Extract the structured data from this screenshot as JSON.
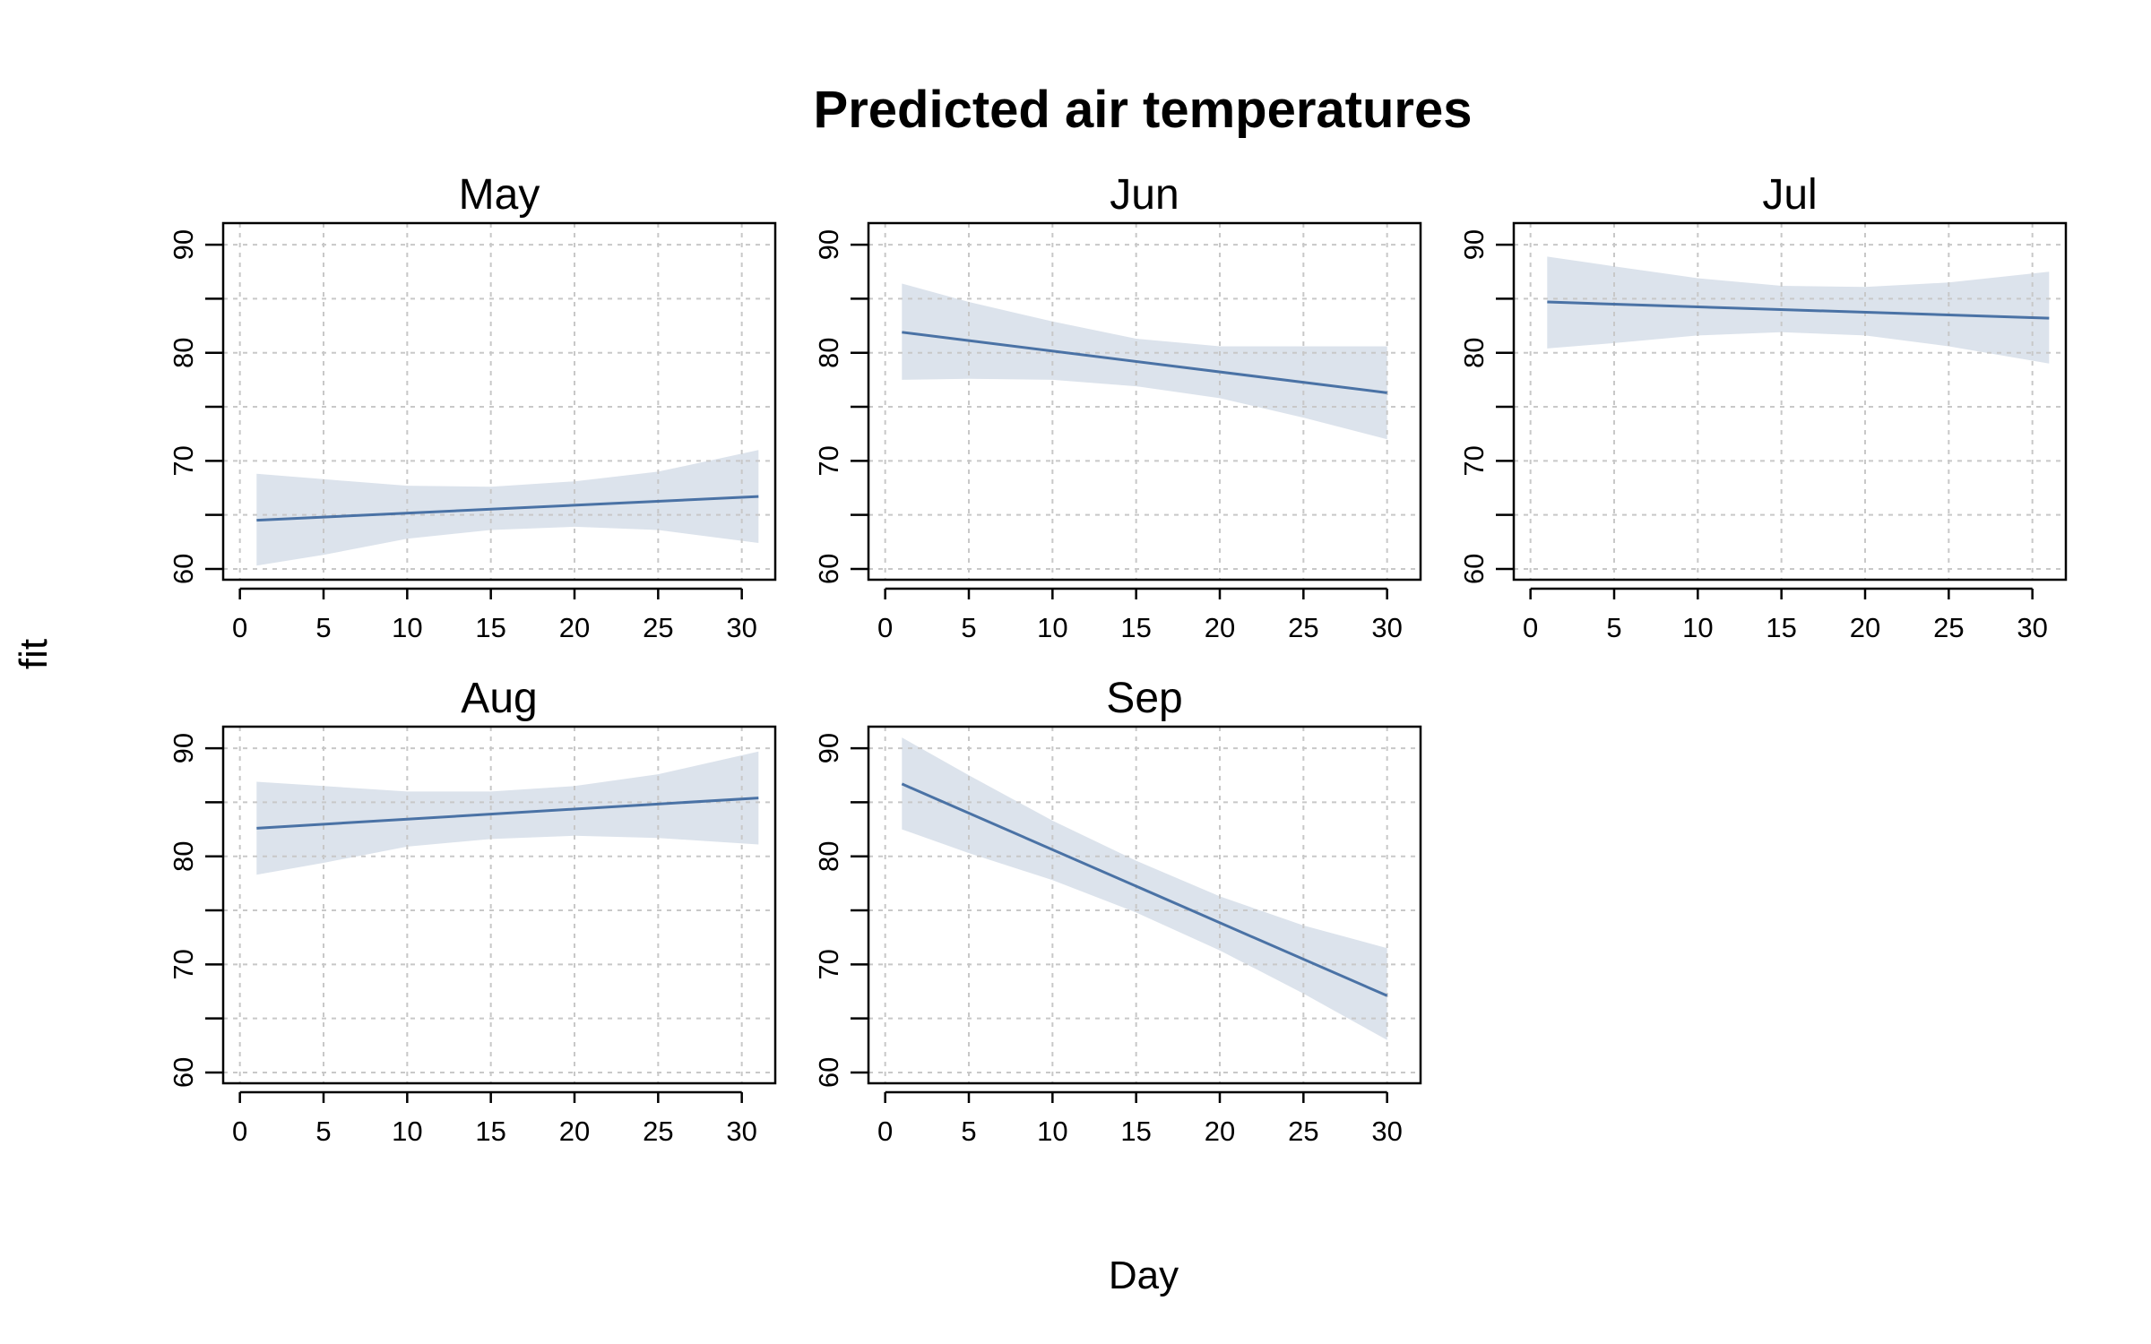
{
  "chart_data": {
    "type": "line",
    "title": "Predicted air temperatures",
    "xlabel": "Day",
    "ylabel": "fit",
    "layout": "3 columns x 2 rows",
    "xlim": [
      -1,
      32
    ],
    "ylim": [
      59,
      92
    ],
    "x_ticks": [
      0,
      5,
      10,
      15,
      20,
      25,
      30
    ],
    "y_ticks": [
      60,
      70,
      80,
      90
    ],
    "grid": true,
    "colors": {
      "line": "#4a72a5",
      "band": "#dce3ec",
      "grid": "#c8c8c8"
    },
    "panels": [
      {
        "name": "May",
        "x": [
          1,
          31
        ],
        "fit": [
          64.5,
          66.7
        ],
        "band_x": [
          1,
          5,
          10,
          15,
          20,
          25,
          31
        ],
        "band_lower": [
          60.3,
          61.3,
          62.8,
          63.6,
          63.9,
          63.6,
          62.4
        ],
        "band_upper": [
          68.8,
          68.3,
          67.7,
          67.6,
          68.1,
          69.0,
          71.0
        ]
      },
      {
        "name": "Jun",
        "x": [
          1,
          30
        ],
        "fit": [
          81.9,
          76.3
        ],
        "band_x": [
          1,
          5,
          10,
          15,
          20,
          25,
          30
        ],
        "band_lower": [
          77.5,
          77.6,
          77.5,
          76.9,
          75.8,
          74.0,
          72.0
        ],
        "band_upper": [
          86.4,
          84.7,
          82.9,
          81.3,
          80.6,
          80.6,
          80.6
        ]
      },
      {
        "name": "Jul",
        "x": [
          1,
          31
        ],
        "fit": [
          84.7,
          83.2
        ],
        "band_x": [
          1,
          5,
          10,
          15,
          20,
          25,
          31
        ],
        "band_lower": [
          80.4,
          80.9,
          81.6,
          81.9,
          81.6,
          80.6,
          79.0
        ],
        "band_upper": [
          88.9,
          88.0,
          86.9,
          86.2,
          86.1,
          86.5,
          87.5
        ]
      },
      {
        "name": "Aug",
        "x": [
          1,
          31
        ],
        "fit": [
          82.6,
          85.4
        ],
        "band_x": [
          1,
          5,
          10,
          15,
          20,
          25,
          31
        ],
        "band_lower": [
          78.3,
          79.4,
          80.9,
          81.6,
          81.9,
          81.7,
          81.1
        ],
        "band_upper": [
          86.9,
          86.5,
          86.0,
          86.0,
          86.5,
          87.6,
          89.7
        ]
      },
      {
        "name": "Sep",
        "x": [
          1,
          30
        ],
        "fit": [
          86.7,
          67.1
        ],
        "band_x": [
          1,
          5,
          10,
          15,
          20,
          25,
          30
        ],
        "band_lower": [
          82.5,
          80.3,
          77.8,
          74.8,
          71.3,
          67.3,
          63.0
        ],
        "band_upper": [
          91.0,
          87.5,
          83.3,
          79.6,
          76.3,
          73.6,
          71.5
        ]
      }
    ]
  }
}
